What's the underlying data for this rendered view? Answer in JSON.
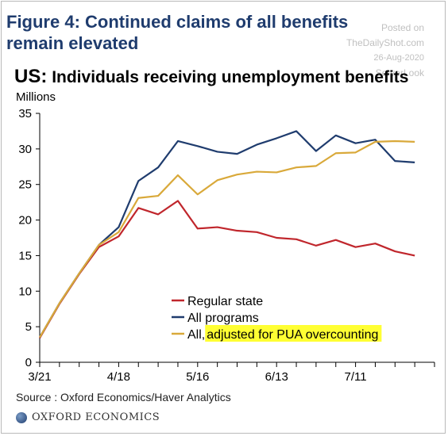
{
  "figure_title": "Figure 4: Continued claims of all benefits remain elevated",
  "watermark": {
    "posted": "Posted on",
    "site": "TheDailyShot.com",
    "date": "26-Aug-2020",
    "brand": "ServerLook"
  },
  "source": "Source : Oxford Economics/Haver Analytics",
  "logo_text": "OXFORD ECONOMICS",
  "colors": {
    "regular": "#c0262c",
    "all": "#1f3c6e",
    "adjusted": "#d9a93a",
    "highlight": "#ffff33",
    "title": "#1f3c6e"
  },
  "chart_data": {
    "type": "line",
    "title_region": "US:",
    "title": "Individuals receiving unemployment benefits",
    "ylabel": "Millions",
    "xlabel": "",
    "ylim": [
      0,
      35
    ],
    "yticks": [
      0,
      5,
      10,
      15,
      20,
      25,
      30,
      35
    ],
    "xtick_labels": [
      "3/21",
      "4/18",
      "5/16",
      "6/13",
      "7/11"
    ],
    "xtick_indices": [
      0,
      4,
      8,
      12,
      16
    ],
    "x": [
      "3/21",
      "3/28",
      "4/4",
      "4/11",
      "4/18",
      "4/25",
      "5/2",
      "5/9",
      "5/16",
      "5/23",
      "5/30",
      "6/6",
      "6/13",
      "6/20",
      "6/27",
      "7/4",
      "7/11",
      "7/18",
      "7/25",
      "8/1"
    ],
    "series": [
      {
        "name": "Regular state",
        "color_key": "regular",
        "values": [
          3.4,
          8.2,
          12.4,
          16.2,
          17.7,
          21.7,
          20.8,
          22.7,
          18.8,
          19.0,
          18.5,
          18.3,
          17.5,
          17.3,
          16.4,
          17.2,
          16.2,
          16.7,
          15.6,
          15.0
        ]
      },
      {
        "name": "All programs",
        "color_key": "all",
        "values": [
          3.5,
          8.3,
          12.5,
          16.5,
          19.0,
          25.5,
          27.4,
          31.1,
          30.4,
          29.6,
          29.3,
          30.6,
          31.5,
          32.5,
          29.7,
          31.9,
          30.8,
          31.3,
          28.3,
          28.1
        ]
      },
      {
        "name": "All, adjusted for PUA overcounting",
        "name_prefix": "All, ",
        "name_highlight": "adjusted for PUA overcounting",
        "color_key": "adjusted",
        "values": [
          3.5,
          8.3,
          12.5,
          16.5,
          18.3,
          23.1,
          23.4,
          26.3,
          23.6,
          25.6,
          26.4,
          26.8,
          26.7,
          27.4,
          27.6,
          29.4,
          29.5,
          31.0,
          31.1,
          31.0
        ]
      }
    ],
    "grid": false,
    "legend_position": "bottom-center"
  }
}
